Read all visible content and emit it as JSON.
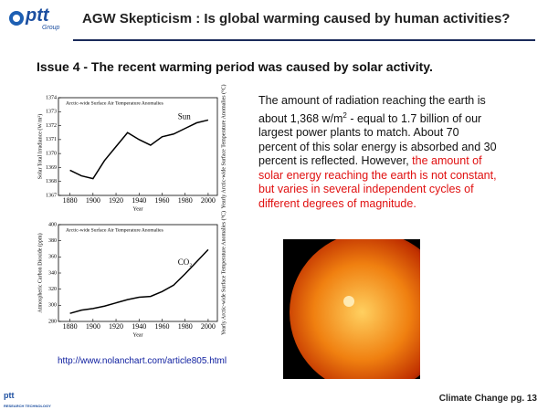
{
  "header": {
    "logo": "ptt",
    "logo_sub": "Group",
    "title": "AGW Skepticism : Is global warming caused by human activities?"
  },
  "subtitle": "Issue 4 - The recent warming period was caused by solar activity.",
  "chart_data": [
    {
      "type": "line",
      "title": "Arctic-wide Surface Air Temperature Anomalies",
      "xlabel": "Year",
      "ylabel": "Solar Total Irradiance (W/m²)",
      "y2label": "Yearly Arctic-wide Surface Temperature Anomalies (°C)",
      "x": [
        1880,
        1890,
        1900,
        1910,
        1920,
        1930,
        1940,
        1950,
        1960,
        1970,
        1980,
        1990,
        2000
      ],
      "series": [
        {
          "name": "Sun",
          "color": "#000000",
          "values": [
            1368.8,
            1368.4,
            1368.2,
            1369.5,
            1370.5,
            1371.5,
            1371.0,
            1370.6,
            1371.2,
            1371.4,
            1371.8,
            1372.2,
            1372.4
          ]
        }
      ],
      "xlim": [
        1870,
        2008
      ],
      "ylim": [
        1367,
        1374
      ],
      "xticks": [
        1880,
        1900,
        1920,
        1940,
        1960,
        1980,
        2000
      ],
      "yticks": [
        1367,
        1368,
        1369,
        1370,
        1371,
        1372,
        1373,
        1374
      ]
    },
    {
      "type": "line",
      "title": "Arctic-wide Surface Air Temperature Anomalies",
      "xlabel": "Year",
      "ylabel": "Atmospheric Carbon Dioxide (ppm)",
      "y2label": "Yearly Arctic-wide Surface Temperature Anomalies (°C)",
      "x": [
        1880,
        1890,
        1900,
        1910,
        1920,
        1930,
        1940,
        1950,
        1960,
        1970,
        1980,
        1990,
        2000
      ],
      "series": [
        {
          "name": "CO₂",
          "color": "#000000",
          "values": [
            290,
            294,
            296,
            299,
            303,
            307,
            310,
            311,
            317,
            325,
            339,
            354,
            369
          ]
        }
      ],
      "xlim": [
        1870,
        2008
      ],
      "ylim": [
        280,
        400
      ],
      "xticks": [
        1880,
        1900,
        1920,
        1940,
        1960,
        1980,
        2000
      ],
      "yticks": [
        280,
        300,
        320,
        340,
        360,
        380,
        400
      ]
    }
  ],
  "body": {
    "text_1": "The amount of radiation reaching the earth is about 1,368 w/m",
    "sup": "2",
    "text_2": " - equal to 1.7 billion of our largest power plants to match. About 70 percent of this solar energy is absorbed and 30 percent is reflected. However, ",
    "text_red": "the amount of solar energy reaching the earth is not constant, but varies in several independent cycles of different degrees of magnitude."
  },
  "footer": {
    "source_url": "http://www.nolanchart.com/article805.html",
    "page_label": "Climate Change pg. 13",
    "logo": "ptt",
    "logo_sub": "RESEARCH TECHNOLOGY"
  }
}
